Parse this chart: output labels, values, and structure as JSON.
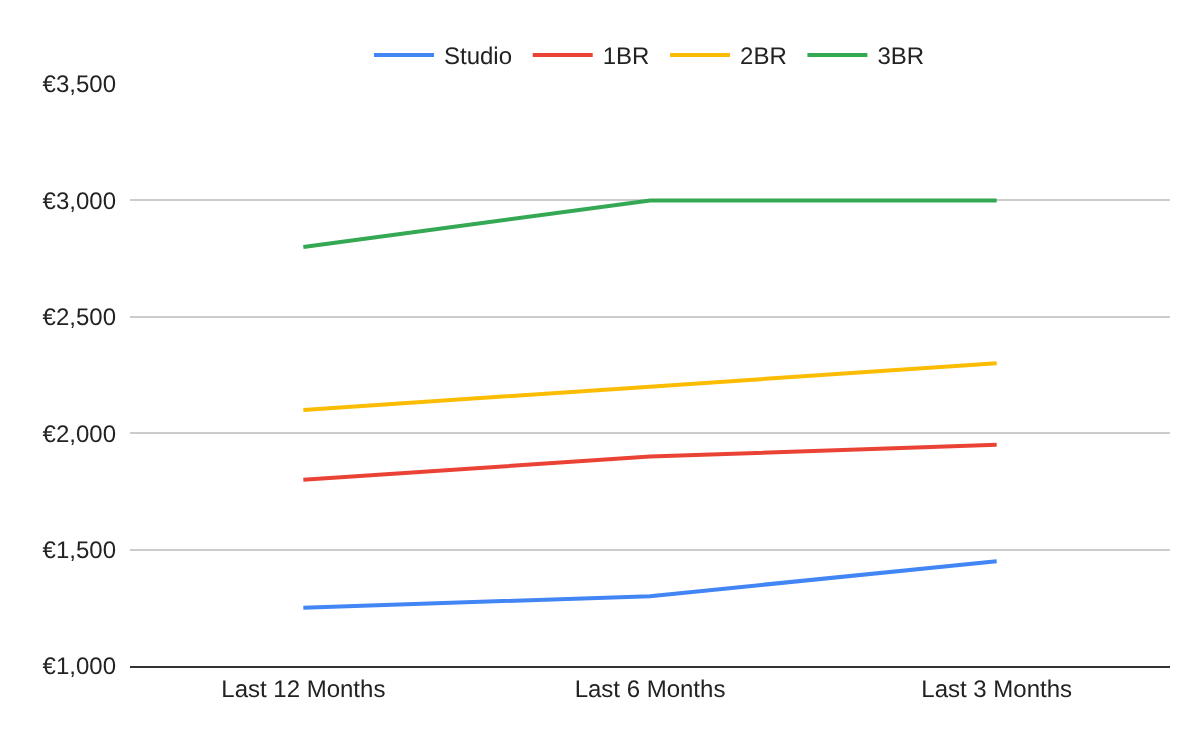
{
  "chart_data": {
    "type": "line",
    "categories": [
      "Last 12 Months",
      "Last 6 Months",
      "Last 3 Months"
    ],
    "series": [
      {
        "name": "Studio",
        "color": "#4285f4",
        "values": [
          1250,
          1300,
          1450
        ]
      },
      {
        "name": "1BR",
        "color": "#ea4335",
        "values": [
          1800,
          1900,
          1950
        ]
      },
      {
        "name": "2BR",
        "color": "#fbbc04",
        "values": [
          2100,
          2200,
          2300
        ]
      },
      {
        "name": "3BR",
        "color": "#34a853",
        "values": [
          2800,
          3000,
          3000
        ]
      }
    ],
    "ylim": [
      1000,
      3500
    ],
    "yticks": [
      {
        "value": 1000,
        "label": "€1,000"
      },
      {
        "value": 1500,
        "label": "€1,500"
      },
      {
        "value": 2000,
        "label": "€2,000"
      },
      {
        "value": 2500,
        "label": "€2,500"
      },
      {
        "value": 3000,
        "label": "€3,000"
      },
      {
        "value": 3500,
        "label": "€3,500"
      }
    ],
    "grid": "y",
    "legend": "top",
    "marker": "none",
    "line_style": "solid"
  }
}
